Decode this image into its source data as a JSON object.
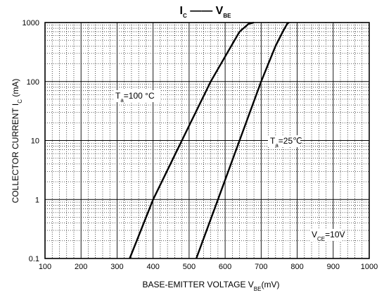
{
  "chart_data": {
    "type": "line",
    "title": {
      "main": "I",
      "main_sub": "C",
      "sep": "——",
      "second": "V",
      "second_sub": "BE"
    },
    "xlabel": {
      "text": "BASE-EMITTER VOLTAGE",
      "sym": "V",
      "sym_sub": "BE",
      "unit": "(mV)"
    },
    "ylabel": {
      "text": "COLLECTOR CURRENT",
      "sym": "I",
      "sym_sub": "C",
      "unit": "(mA)"
    },
    "x_scale": "linear",
    "y_scale": "log",
    "xlim": [
      100,
      1000
    ],
    "ylim": [
      0.1,
      1000
    ],
    "x_ticks": [
      "100",
      "200",
      "300",
      "400",
      "500",
      "600",
      "700",
      "800",
      "900",
      "1000"
    ],
    "y_ticks": [
      "0.1",
      "1",
      "10",
      "100",
      "1000"
    ],
    "grid": true,
    "series": [
      {
        "name": "Ta=100 °C",
        "x": [
          335,
          400,
          480,
          560,
          605,
          640,
          665,
          680
        ],
        "y": [
          0.1,
          1,
          10,
          100,
          300,
          700,
          950,
          1000
        ]
      },
      {
        "name": "Ta=25°C",
        "x": [
          520,
          580,
          640,
          700,
          740,
          760,
          772,
          777
        ],
        "y": [
          0.1,
          1,
          10,
          100,
          400,
          700,
          950,
          1000
        ]
      }
    ],
    "annotations": [
      {
        "pre": "T",
        "sub": "a",
        "post": "=100 °C"
      },
      {
        "pre": "T",
        "sub": "a",
        "post": "=25℃"
      },
      {
        "pre": "V",
        "sub": "CE",
        "post": "=10V"
      }
    ]
  }
}
